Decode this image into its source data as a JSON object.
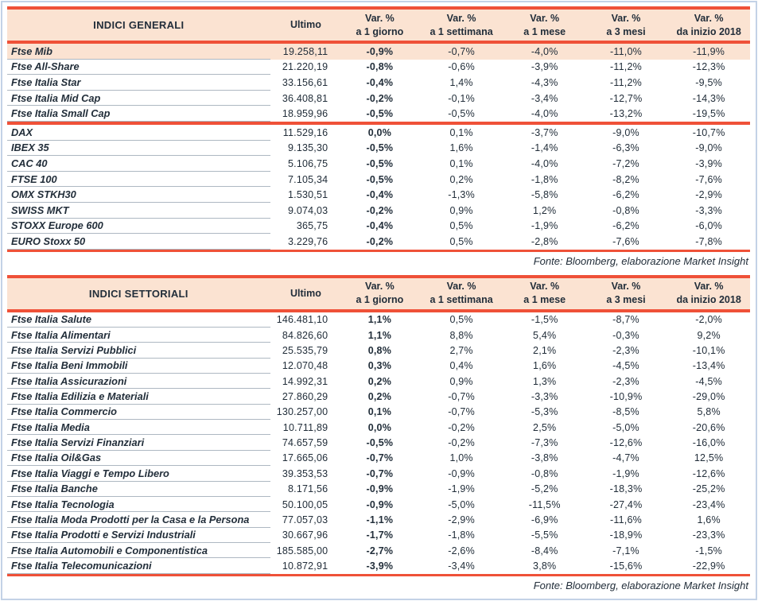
{
  "colors": {
    "accent": "#ef5138",
    "header_bg": "#fbe3d2",
    "highlight_row_bg": "#fbe3d2",
    "text": "#222e3a",
    "row_line": "#aeb8c2",
    "frame": "#c3d2e6",
    "page_bg": "#ffffff"
  },
  "tables": [
    {
      "title": "INDICI GENERALI",
      "fonte": "Fonte: Bloomberg, elaborazione Market Insight",
      "columns": [
        {
          "line1": "Ultimo",
          "line2": ""
        },
        {
          "line1": "Var. %",
          "line2": "a 1 giorno"
        },
        {
          "line1": "Var. %",
          "line2": "a 1 settimana"
        },
        {
          "line1": "Var. %",
          "line2": "a 1 mese"
        },
        {
          "line1": "Var. %",
          "line2": "a 3 mesi"
        },
        {
          "line1": "Var. %",
          "line2": "da inizio 2018"
        }
      ],
      "groups": [
        {
          "rows": [
            {
              "name": "Ftse Mib",
              "highlight": true,
              "values": [
                "19.258,11",
                "-0,9%",
                "-0,7%",
                "-4,0%",
                "-11,0%",
                "-11,9%"
              ]
            },
            {
              "name": "Ftse All-Share",
              "values": [
                "21.220,19",
                "-0,8%",
                "-0,6%",
                "-3,9%",
                "-11,2%",
                "-12,3%"
              ]
            },
            {
              "name": "Ftse Italia Star",
              "values": [
                "33.156,61",
                "-0,4%",
                "1,4%",
                "-4,3%",
                "-11,2%",
                "-9,5%"
              ]
            },
            {
              "name": "Ftse Italia Mid Cap",
              "values": [
                "36.408,81",
                "-0,2%",
                "-0,1%",
                "-3,4%",
                "-12,7%",
                "-14,3%"
              ]
            },
            {
              "name": "Ftse Italia Small Cap",
              "values": [
                "18.959,96",
                "-0,5%",
                "-0,5%",
                "-4,0%",
                "-13,2%",
                "-19,5%"
              ]
            }
          ]
        },
        {
          "rows": [
            {
              "name": "DAX",
              "values": [
                "11.529,16",
                "0,0%",
                "0,1%",
                "-3,7%",
                "-9,0%",
                "-10,7%"
              ]
            },
            {
              "name": "IBEX 35",
              "values": [
                "9.135,30",
                "-0,5%",
                "1,6%",
                "-1,4%",
                "-6,3%",
                "-9,0%"
              ]
            },
            {
              "name": "CAC 40",
              "values": [
                "5.106,75",
                "-0,5%",
                "0,1%",
                "-4,0%",
                "-7,2%",
                "-3,9%"
              ]
            },
            {
              "name": "FTSE 100",
              "values": [
                "7.105,34",
                "-0,5%",
                "0,2%",
                "-1,8%",
                "-8,2%",
                "-7,6%"
              ]
            },
            {
              "name": "OMX STKH30",
              "values": [
                "1.530,51",
                "-0,4%",
                "-1,3%",
                "-5,8%",
                "-6,2%",
                "-2,9%"
              ]
            },
            {
              "name": "SWISS MKT",
              "values": [
                "9.074,03",
                "-0,2%",
                "0,9%",
                "1,2%",
                "-0,8%",
                "-3,3%"
              ]
            },
            {
              "name": "STOXX Europe 600",
              "values": [
                "365,75",
                "-0,4%",
                "0,5%",
                "-1,9%",
                "-6,2%",
                "-6,0%"
              ]
            },
            {
              "name": "EURO Stoxx 50",
              "values": [
                "3.229,76",
                "-0,2%",
                "0,5%",
                "-2,8%",
                "-7,6%",
                "-7,8%"
              ]
            }
          ]
        }
      ]
    },
    {
      "title": "INDICI SETTORIALI",
      "fonte": "Fonte: Bloomberg, elaborazione Market Insight",
      "columns": [
        {
          "line1": "Ultimo",
          "line2": ""
        },
        {
          "line1": "Var. %",
          "line2": "a 1 giorno"
        },
        {
          "line1": "Var. %",
          "line2": "a 1 settimana"
        },
        {
          "line1": "Var. %",
          "line2": "a 1 mese"
        },
        {
          "line1": "Var. %",
          "line2": "a 3 mesi"
        },
        {
          "line1": "Var. %",
          "line2": "da inizio 2018"
        }
      ],
      "groups": [
        {
          "rows": [
            {
              "name": "Ftse Italia Salute",
              "values": [
                "146.481,10",
                "1,1%",
                "0,5%",
                "-1,5%",
                "-8,7%",
                "-2,0%"
              ]
            },
            {
              "name": "Ftse Italia Alimentari",
              "values": [
                "84.826,60",
                "1,1%",
                "8,8%",
                "5,4%",
                "-0,3%",
                "9,2%"
              ]
            },
            {
              "name": "Ftse Italia Servizi Pubblici",
              "values": [
                "25.535,79",
                "0,8%",
                "2,7%",
                "2,1%",
                "-2,3%",
                "-10,1%"
              ]
            },
            {
              "name": "Ftse Italia Beni Immobili",
              "values": [
                "12.070,48",
                "0,3%",
                "0,4%",
                "1,6%",
                "-4,5%",
                "-13,4%"
              ]
            },
            {
              "name": "Ftse Italia Assicurazioni",
              "values": [
                "14.992,31",
                "0,2%",
                "0,9%",
                "1,3%",
                "-2,3%",
                "-4,5%"
              ]
            },
            {
              "name": "Ftse Italia Edilizia e Materiali",
              "values": [
                "27.860,29",
                "0,2%",
                "-0,7%",
                "-3,3%",
                "-10,9%",
                "-29,0%"
              ]
            },
            {
              "name": "Ftse Italia Commercio",
              "values": [
                "130.257,00",
                "0,1%",
                "-0,7%",
                "-5,3%",
                "-8,5%",
                "5,8%"
              ]
            },
            {
              "name": "Ftse Italia Media",
              "values": [
                "10.711,89",
                "0,0%",
                "-0,2%",
                "2,5%",
                "-5,0%",
                "-20,6%"
              ]
            },
            {
              "name": "Ftse Italia Servizi Finanziari",
              "values": [
                "74.657,59",
                "-0,5%",
                "-0,2%",
                "-7,3%",
                "-12,6%",
                "-16,0%"
              ]
            },
            {
              "name": "Ftse Italia Oil&Gas",
              "values": [
                "17.665,06",
                "-0,7%",
                "1,0%",
                "-3,8%",
                "-4,7%",
                "12,5%"
              ]
            },
            {
              "name": "Ftse Italia Viaggi e Tempo Libero",
              "values": [
                "39.353,53",
                "-0,7%",
                "-0,9%",
                "-0,8%",
                "-1,9%",
                "-12,6%"
              ]
            },
            {
              "name": "Ftse Italia Banche",
              "values": [
                "8.171,56",
                "-0,9%",
                "-1,9%",
                "-5,2%",
                "-18,3%",
                "-25,2%"
              ]
            },
            {
              "name": "Ftse Italia Tecnologia",
              "values": [
                "50.100,05",
                "-0,9%",
                "-5,0%",
                "-11,5%",
                "-27,4%",
                "-23,4%"
              ]
            },
            {
              "name": "Ftse Italia Moda Prodotti per la Casa e la Persona",
              "values": [
                "77.057,03",
                "-1,1%",
                "-2,9%",
                "-6,9%",
                "-11,6%",
                "1,6%"
              ]
            },
            {
              "name": "Ftse Italia Prodotti e Servizi Industriali",
              "values": [
                "30.667,96",
                "-1,7%",
                "-1,8%",
                "-5,5%",
                "-18,9%",
                "-23,3%"
              ]
            },
            {
              "name": "Ftse Italia Automobili e Componentistica",
              "values": [
                "185.585,00",
                "-2,7%",
                "-2,6%",
                "-8,4%",
                "-7,1%",
                "-1,5%"
              ]
            },
            {
              "name": "Ftse Italia Telecomunicazioni",
              "values": [
                "10.872,91",
                "-3,9%",
                "-3,4%",
                "3,8%",
                "-15,6%",
                "-22,9%"
              ]
            }
          ]
        }
      ]
    }
  ]
}
